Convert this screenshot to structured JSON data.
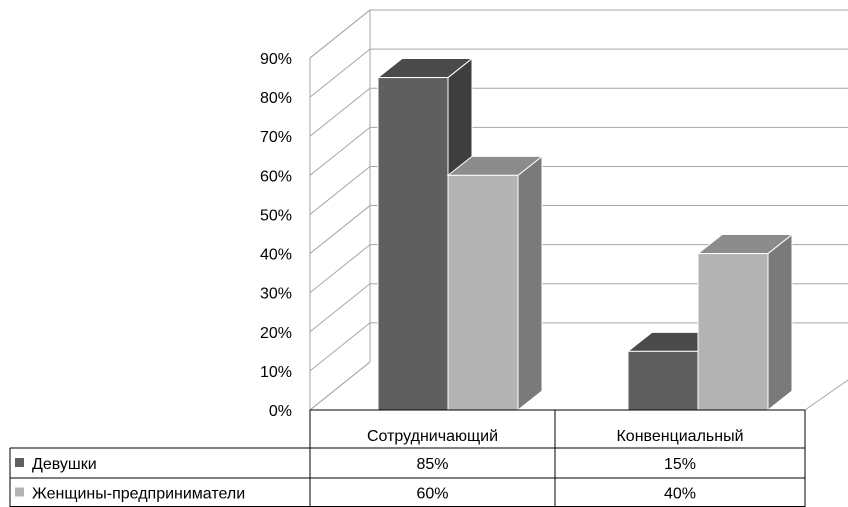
{
  "chart_data": {
    "type": "bar",
    "style": "3d-clustered-column",
    "categories": [
      "Сотрудничающий",
      "Конвенциальный"
    ],
    "series": [
      {
        "name": "Девушки",
        "values": [
          85,
          15
        ],
        "labels": [
          "85%",
          "15%"
        ],
        "color": "#5f5f5f",
        "top_color": "#4a4a4a",
        "side_color": "#3e3e3e"
      },
      {
        "name": "Женщины-предприниматели",
        "values": [
          60,
          40
        ],
        "labels": [
          "60%",
          "40%"
        ],
        "color": "#b3b3b3",
        "top_color": "#8c8c8c",
        "side_color": "#7a7a7a"
      }
    ],
    "y_ticks": [
      "0%",
      "10%",
      "20%",
      "30%",
      "40%",
      "50%",
      "60%",
      "70%",
      "80%",
      "90%"
    ],
    "ylim": [
      0,
      90
    ],
    "grid": true,
    "legend": "data-table"
  }
}
